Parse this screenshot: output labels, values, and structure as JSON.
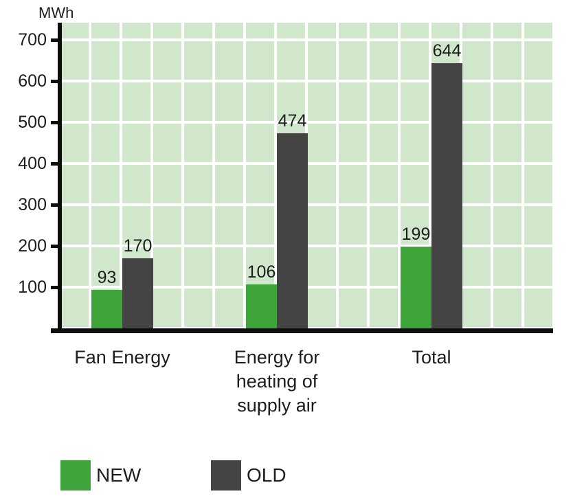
{
  "chart_data": {
    "type": "bar",
    "title": "",
    "unit_label": "MWh",
    "categories": [
      "Fan Energy",
      "Energy for\nheating of\nsupply air",
      "Total"
    ],
    "series": [
      {
        "name": "NEW",
        "color": "#3ea53a",
        "values": [
          93,
          106,
          199
        ]
      },
      {
        "name": "OLD",
        "color": "#444444",
        "values": [
          170,
          474,
          644
        ]
      }
    ],
    "y_ticks": [
      700,
      600,
      500,
      400,
      300,
      200,
      100
    ],
    "ylim": [
      0,
      745
    ],
    "grid": true,
    "plot_bg": "#d0e7cb",
    "gridline_color": "#ffffff",
    "axis_color": "#0d0d0d",
    "legend_position": "bottom"
  }
}
